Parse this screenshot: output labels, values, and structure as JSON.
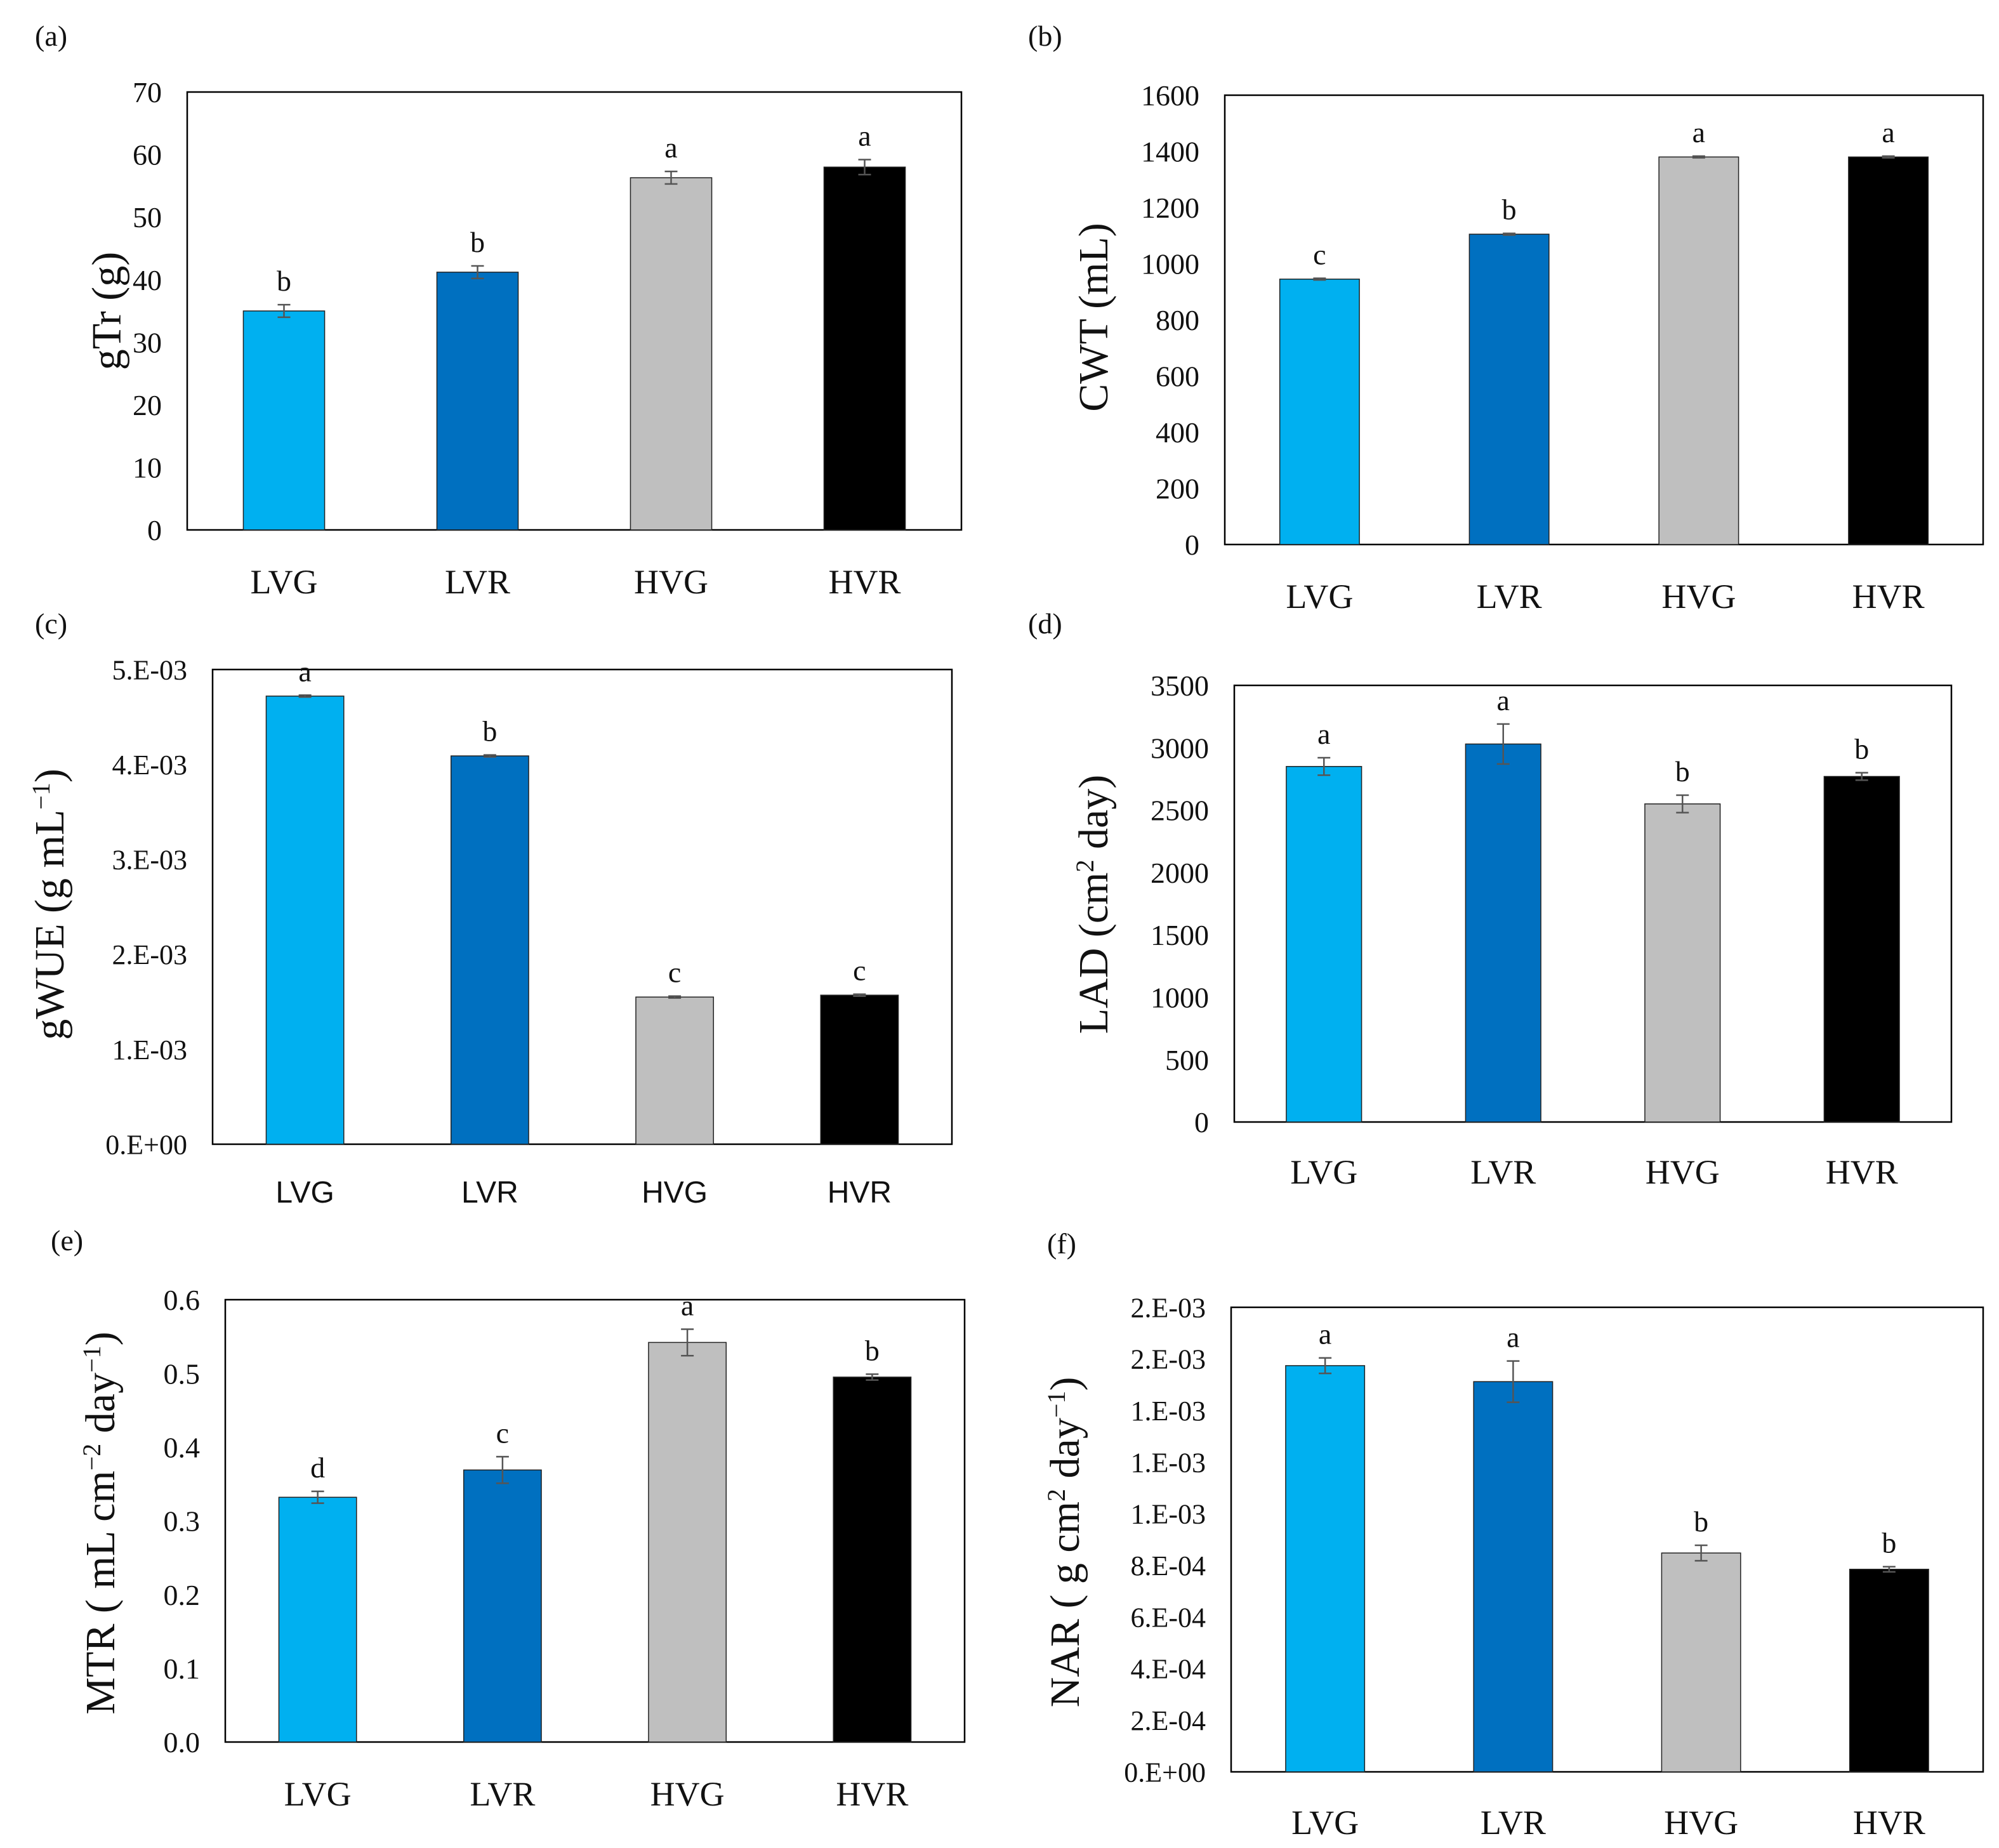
{
  "figure": {
    "groups": [
      "LVG",
      "LVR",
      "HVG",
      "HVR"
    ],
    "colors": {
      "LVG": "#00b0f0",
      "LVR": "#0070c0",
      "HVG": "#bfbfbf",
      "HVR": "#000000",
      "axis": "#000000",
      "error_bar": "#555555"
    }
  },
  "chart_data": [
    {
      "panel_label": "(a)",
      "type": "bar",
      "categories": [
        "LVG",
        "LVR",
        "HVG",
        "HVR"
      ],
      "values": [
        35,
        41.2,
        56.3,
        58
      ],
      "errors": [
        1,
        1,
        1,
        1.2
      ],
      "letters": [
        "b",
        "b",
        "a",
        "a"
      ],
      "ylabel_main": "gTr (g)",
      "ylabel_sup": "",
      "ylabel_tail": "",
      "ylim": [
        0,
        70
      ],
      "yticks": [
        0,
        10,
        20,
        30,
        40,
        50,
        60,
        70
      ],
      "ytick_labels": [
        "0",
        "10",
        "20",
        "30",
        "40",
        "50",
        "60",
        "70"
      ],
      "xtick_style": "serif"
    },
    {
      "panel_label": "(b)",
      "type": "bar",
      "categories": [
        "LVG",
        "LVR",
        "HVG",
        "HVR"
      ],
      "values": [
        945,
        1105,
        1380,
        1380
      ],
      "errors": [
        3,
        3,
        3,
        3
      ],
      "letters": [
        "c",
        "b",
        "a",
        "a"
      ],
      "ylabel_main": "CWT (mL)",
      "ylabel_sup": "",
      "ylabel_tail": "",
      "ylim": [
        0,
        1600
      ],
      "yticks": [
        0,
        200,
        400,
        600,
        800,
        1000,
        1200,
        1400,
        1600
      ],
      "ytick_labels": [
        "0",
        "200",
        "400",
        "600",
        "800",
        "1000",
        "1200",
        "1400",
        "1600"
      ],
      "xtick_style": "serif"
    },
    {
      "panel_label": "(c)",
      "type": "bar",
      "categories": [
        "LVG",
        "LVR",
        "HVG",
        "HVR"
      ],
      "values": [
        0.00472,
        0.00409,
        0.00155,
        0.00157
      ],
      "errors": [
        1e-05,
        1e-05,
        1e-05,
        1e-05
      ],
      "letters": [
        "a",
        "b",
        "c",
        "c"
      ],
      "ylabel_main": "gWUE (g mL",
      "ylabel_sup": "−1",
      "ylabel_tail": ")",
      "ylim": [
        0,
        0.005
      ],
      "yticks": [
        0,
        0.001,
        0.002,
        0.003,
        0.004,
        0.005
      ],
      "ytick_labels": [
        "0.E+00",
        "1.E-03",
        "2.E-03",
        "3.E-03",
        "4.E-03",
        "5.E-03"
      ],
      "xtick_style": "sans"
    },
    {
      "panel_label": "(d)",
      "type": "bar",
      "categories": [
        "LVG",
        "LVR",
        "HVG",
        "HVR"
      ],
      "values": [
        2850,
        3030,
        2550,
        2770
      ],
      "errors": [
        70,
        160,
        70,
        30
      ],
      "letters": [
        "a",
        "a",
        "b",
        "b"
      ],
      "ylabel_main": "LAD (cm",
      "ylabel_sup": "2",
      "ylabel_tail": " day)",
      "ylim": [
        0,
        3500
      ],
      "yticks": [
        0,
        500,
        1000,
        1500,
        2000,
        2500,
        3000,
        3500
      ],
      "ytick_labels": [
        "0",
        "500",
        "1000",
        "1500",
        "2000",
        "2500",
        "3000",
        "3500"
      ],
      "xtick_style": "serif"
    },
    {
      "panel_label": "(e)",
      "type": "bar",
      "categories": [
        "LVG",
        "LVR",
        "HVG",
        "HVR"
      ],
      "values": [
        0.332,
        0.369,
        0.542,
        0.495
      ],
      "errors": [
        0.008,
        0.018,
        0.018,
        0.004
      ],
      "letters": [
        "d",
        "c",
        "a",
        "b"
      ],
      "ylabel_main": "MTR ( mL cm",
      "ylabel_sup": "−2",
      "ylabel_tail": " day",
      "ylabel_sup2": "−1",
      "ylabel_tail2": ")",
      "ylim": [
        0,
        0.6
      ],
      "yticks": [
        0,
        0.1,
        0.2,
        0.3,
        0.4,
        0.5,
        0.6
      ],
      "ytick_labels": [
        "0.0",
        "0.1",
        "0.2",
        "0.3",
        "0.4",
        "0.5",
        "0.6"
      ],
      "xtick_style": "serif"
    },
    {
      "panel_label": "(f)",
      "type": "bar",
      "categories": [
        "LVG",
        "LVR",
        "HVG",
        "HVR"
      ],
      "values": [
        0.001574,
        0.001512,
        0.000848,
        0.000785
      ],
      "errors": [
        3e-05,
        8e-05,
        3e-05,
        1e-05
      ],
      "letters": [
        "a",
        "a",
        "b",
        "b"
      ],
      "ylabel_main": "NAR ( g cm",
      "ylabel_sup": "2",
      "ylabel_tail": " day",
      "ylabel_sup2": "−1",
      "ylabel_tail2": ")",
      "ylim": [
        0,
        0.0018
      ],
      "yticks": [
        0,
        0.0002,
        0.0004,
        0.0006,
        0.0008,
        0.001,
        0.0012,
        0.0014,
        0.0016,
        0.0018
      ],
      "ytick_labels": [
        "0.E+00",
        "2.E-04",
        "4.E-04",
        "6.E-04",
        "8.E-04",
        "1.E-03",
        "1.E-03",
        "1.E-03",
        "2.E-03",
        "2.E-03"
      ],
      "xtick_style": "serif"
    }
  ]
}
